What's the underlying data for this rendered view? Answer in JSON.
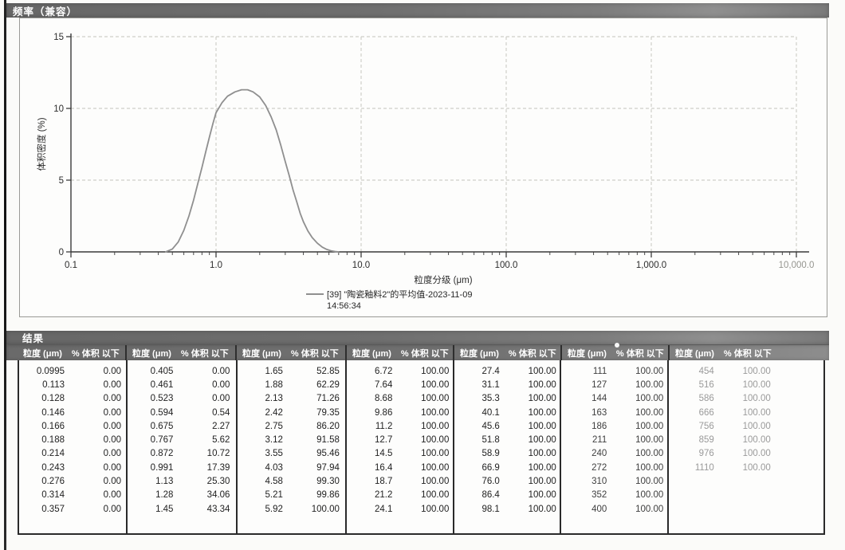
{
  "chart_data": {
    "type": "line",
    "title": "频率（兼容）",
    "xlabel": "粒度分级 (μm)",
    "ylabel": "体积密度 (%)",
    "x_scale": "log",
    "xlim": [
      0.1,
      10000
    ],
    "ylim": [
      0,
      15
    ],
    "grid": true,
    "legend_position": "bottom",
    "x_ticks": [
      {
        "v": 0.1,
        "label": "0.1",
        "faded": false
      },
      {
        "v": 1.0,
        "label": "1.0",
        "faded": false
      },
      {
        "v": 10.0,
        "label": "10.0",
        "faded": false
      },
      {
        "v": 100.0,
        "label": "100.0",
        "faded": false
      },
      {
        "v": 1000.0,
        "label": "1,000.0",
        "faded": false
      },
      {
        "v": 10000.0,
        "label": "10,000.0",
        "faded": true
      }
    ],
    "y_ticks": [
      0,
      5,
      10,
      15
    ],
    "legend_line2": "14:56:34",
    "series": [
      {
        "name": "[39] \"陶瓷釉料2\"的平均值-2023-11-09",
        "color": "#8f8f8f",
        "points": [
          [
            0.45,
            0
          ],
          [
            0.5,
            0.2
          ],
          [
            0.55,
            0.7
          ],
          [
            0.6,
            1.5
          ],
          [
            0.65,
            2.5
          ],
          [
            0.7,
            3.6
          ],
          [
            0.75,
            4.8
          ],
          [
            0.8,
            5.9
          ],
          [
            0.85,
            7.0
          ],
          [
            0.9,
            8.0
          ],
          [
            0.95,
            8.9
          ],
          [
            1.0,
            9.7
          ],
          [
            1.1,
            10.4
          ],
          [
            1.2,
            10.85
          ],
          [
            1.35,
            11.15
          ],
          [
            1.5,
            11.3
          ],
          [
            1.65,
            11.3
          ],
          [
            1.8,
            11.15
          ],
          [
            2.0,
            10.8
          ],
          [
            2.2,
            10.2
          ],
          [
            2.4,
            9.4
          ],
          [
            2.6,
            8.5
          ],
          [
            2.8,
            7.4
          ],
          [
            3.0,
            6.3
          ],
          [
            3.2,
            5.3
          ],
          [
            3.4,
            4.3
          ],
          [
            3.6,
            3.5
          ],
          [
            3.8,
            2.7
          ],
          [
            4.0,
            2.1
          ],
          [
            4.3,
            1.45
          ],
          [
            4.6,
            1.0
          ],
          [
            5.0,
            0.6
          ],
          [
            5.4,
            0.33
          ],
          [
            5.8,
            0.17
          ],
          [
            6.2,
            0.08
          ],
          [
            6.6,
            0.03
          ],
          [
            7.0,
            0
          ]
        ]
      }
    ]
  },
  "results_table": {
    "section_title": "结果",
    "col_size_header": "粒度 (μm)",
    "col_pct_header": "% 体积 以下",
    "groups": [
      {
        "rows": [
          [
            "0.0995",
            "0.00"
          ],
          [
            "0.113",
            "0.00"
          ],
          [
            "0.128",
            "0.00"
          ],
          [
            "0.146",
            "0.00"
          ],
          [
            "0.166",
            "0.00"
          ],
          [
            "0.188",
            "0.00"
          ],
          [
            "0.214",
            "0.00"
          ],
          [
            "0.243",
            "0.00"
          ],
          [
            "0.276",
            "0.00"
          ],
          [
            "0.314",
            "0.00"
          ],
          [
            "0.357",
            "0.00"
          ]
        ]
      },
      {
        "rows": [
          [
            "0.405",
            "0.00"
          ],
          [
            "0.461",
            "0.00"
          ],
          [
            "0.523",
            "0.00"
          ],
          [
            "0.594",
            "0.54"
          ],
          [
            "0.675",
            "2.27"
          ],
          [
            "0.767",
            "5.62"
          ],
          [
            "0.872",
            "10.72"
          ],
          [
            "0.991",
            "17.39"
          ],
          [
            "1.13",
            "25.30"
          ],
          [
            "1.28",
            "34.06"
          ],
          [
            "1.45",
            "43.34"
          ]
        ]
      },
      {
        "rows": [
          [
            "1.65",
            "52.85"
          ],
          [
            "1.88",
            "62.29"
          ],
          [
            "2.13",
            "71.26"
          ],
          [
            "2.42",
            "79.35"
          ],
          [
            "2.75",
            "86.20"
          ],
          [
            "3.12",
            "91.58"
          ],
          [
            "3.55",
            "95.46"
          ],
          [
            "4.03",
            "97.94"
          ],
          [
            "4.58",
            "99.30"
          ],
          [
            "5.21",
            "99.86"
          ],
          [
            "5.92",
            "100.00"
          ]
        ]
      },
      {
        "rows": [
          [
            "6.72",
            "100.00"
          ],
          [
            "7.64",
            "100.00"
          ],
          [
            "8.68",
            "100.00"
          ],
          [
            "9.86",
            "100.00"
          ],
          [
            "11.2",
            "100.00"
          ],
          [
            "12.7",
            "100.00"
          ],
          [
            "14.5",
            "100.00"
          ],
          [
            "16.4",
            "100.00"
          ],
          [
            "18.7",
            "100.00"
          ],
          [
            "21.2",
            "100.00"
          ],
          [
            "24.1",
            "100.00"
          ]
        ]
      },
      {
        "rows": [
          [
            "27.4",
            "100.00"
          ],
          [
            "31.1",
            "100.00"
          ],
          [
            "35.3",
            "100.00"
          ],
          [
            "40.1",
            "100.00"
          ],
          [
            "45.6",
            "100.00"
          ],
          [
            "51.8",
            "100.00"
          ],
          [
            "58.9",
            "100.00"
          ],
          [
            "66.9",
            "100.00"
          ],
          [
            "76.0",
            "100.00"
          ],
          [
            "86.4",
            "100.00"
          ],
          [
            "98.1",
            "100.00"
          ]
        ]
      },
      {
        "rows": [
          [
            "111",
            "100.00"
          ],
          [
            "127",
            "100.00"
          ],
          [
            "144",
            "100.00"
          ],
          [
            "163",
            "100.00"
          ],
          [
            "186",
            "100.00"
          ],
          [
            "211",
            "100.00"
          ],
          [
            "240",
            "100.00"
          ],
          [
            "272",
            "100.00"
          ],
          [
            "310",
            "100.00"
          ],
          [
            "352",
            "100.00"
          ],
          [
            "400",
            "100.00"
          ]
        ]
      },
      {
        "rows": [
          [
            "454",
            "100.00"
          ],
          [
            "516",
            "100.00"
          ],
          [
            "586",
            "100.00"
          ],
          [
            "666",
            "100.00"
          ],
          [
            "756",
            "100.00"
          ],
          [
            "859",
            "100.00"
          ],
          [
            "976",
            "100.00"
          ],
          [
            "1110",
            "100.00"
          ]
        ]
      }
    ]
  }
}
